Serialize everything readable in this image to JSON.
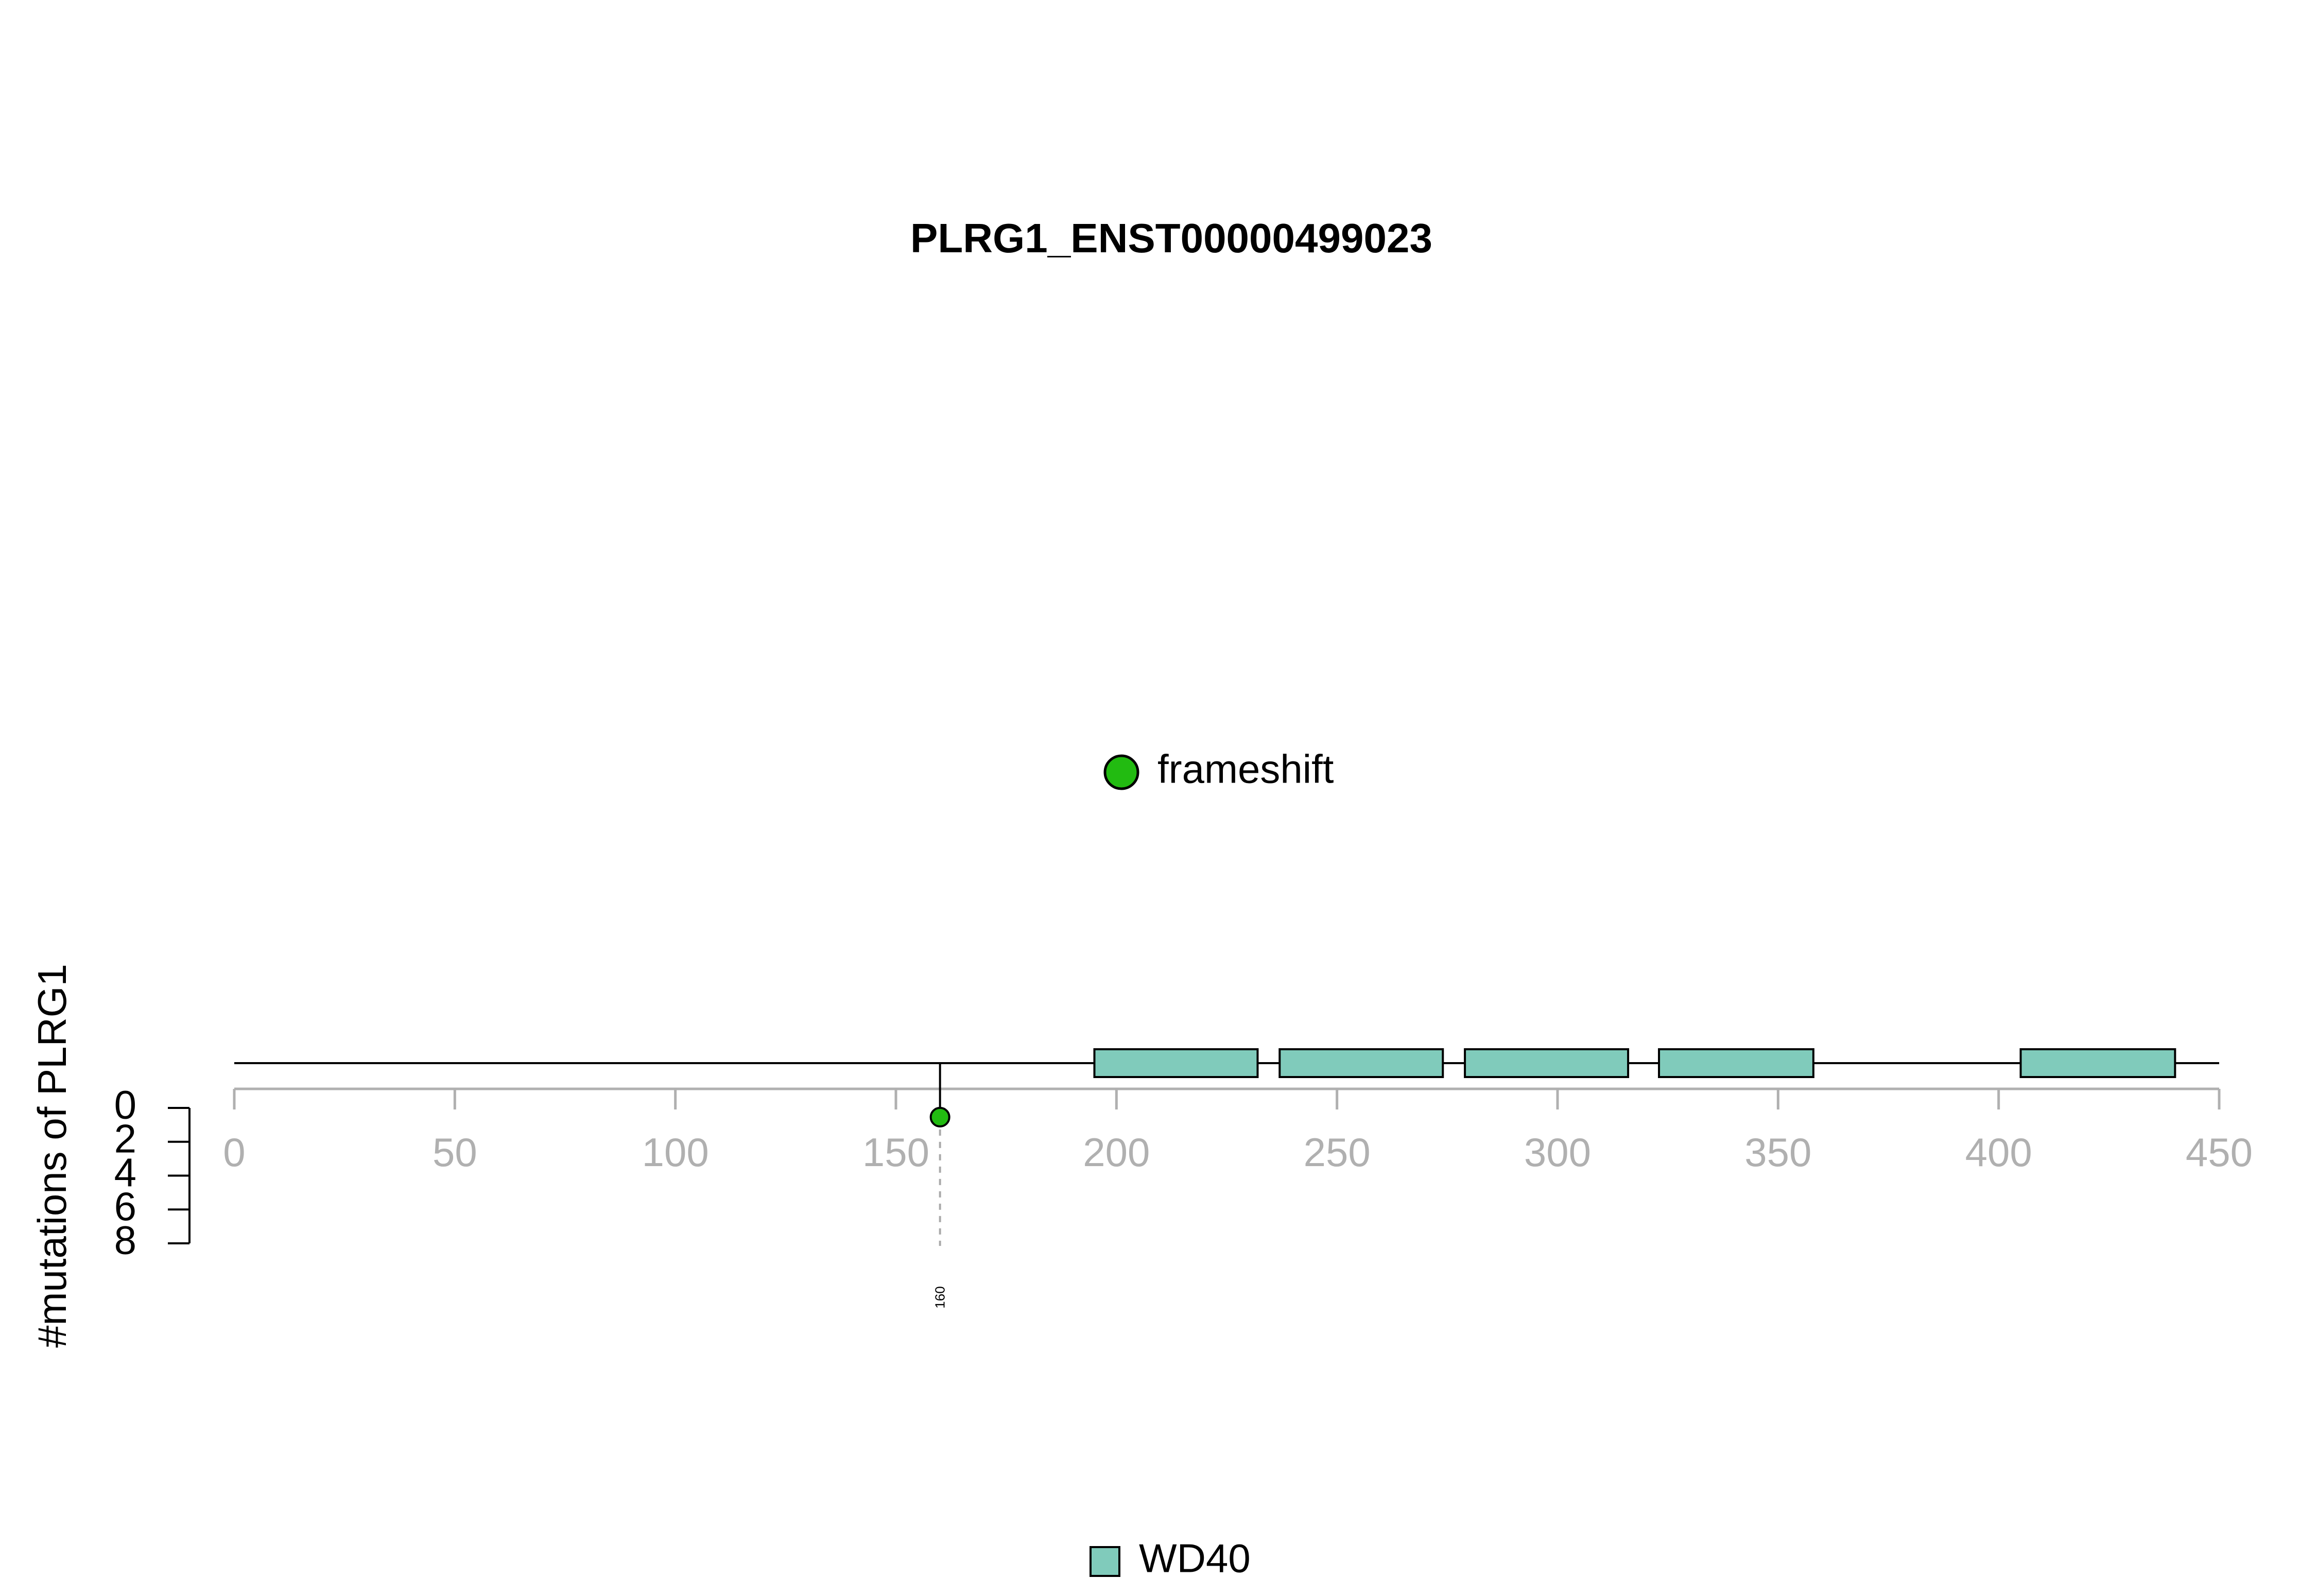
{
  "chart_data": {
    "type": "lollipop",
    "title": "PLRG1_ENST00000499023",
    "ylabel": "#mutations of PLRG1",
    "xlim": [
      0,
      450
    ],
    "x_ticks": [
      0,
      50,
      100,
      150,
      200,
      250,
      300,
      350,
      400,
      450
    ],
    "ylim": [
      0,
      8
    ],
    "y_ticks": [
      0,
      2,
      4,
      6,
      8
    ],
    "protein_length": 450,
    "domains": [
      {
        "name": "WD40",
        "start": 195,
        "end": 232
      },
      {
        "name": "WD40",
        "start": 237,
        "end": 274
      },
      {
        "name": "WD40",
        "start": 279,
        "end": 316
      },
      {
        "name": "WD40",
        "start": 323,
        "end": 358
      },
      {
        "name": "WD40",
        "start": 405,
        "end": 440
      }
    ],
    "mutations": [
      {
        "position": 160,
        "count": 1,
        "type": "frameshift",
        "label": "160"
      }
    ],
    "mutation_legend": [
      {
        "label": "frameshift",
        "color": "#22bb11"
      }
    ],
    "domain_legend": [
      {
        "label": "WD40",
        "color": "#80cbbb"
      }
    ]
  },
  "colors": {
    "axis_gray": "#b0b0b0",
    "domain_fill": "#80cbbb",
    "frameshift": "#22bb11"
  }
}
